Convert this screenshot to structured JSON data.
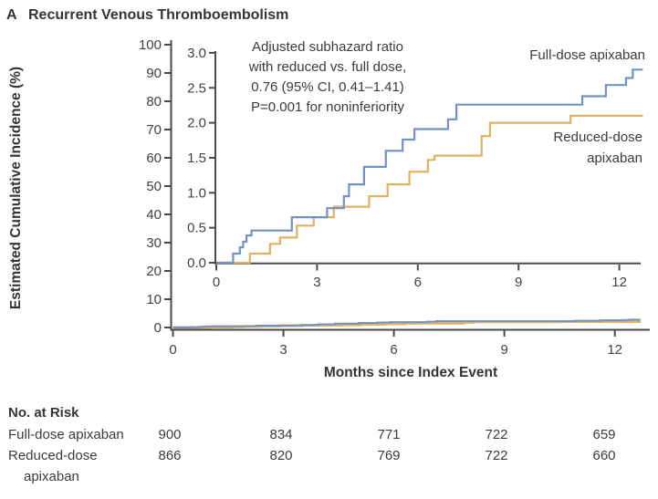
{
  "panel": {
    "label": "A",
    "title": "Recurrent Venous Thromboembolism"
  },
  "colors": {
    "full_dose": "#7292c2",
    "reduced_dose": "#e0b162",
    "axis": "#4a4a4c",
    "tick_text": "#424244",
    "text": "#3b3b3d"
  },
  "chart_data": {
    "type": "line",
    "subtype": "step-cumulative-incidence",
    "title": "Recurrent Venous Thromboembolism",
    "xlabel": "Months since Index Event",
    "ylabel": "Estimated Cumulative Incidence (%)",
    "x_ticks": [
      0,
      3,
      6,
      9,
      12
    ],
    "xlim": [
      0,
      12.95
    ],
    "main_axis": {
      "ylim": [
        0,
        100
      ],
      "y_ticks": [
        0,
        10,
        20,
        30,
        40,
        50,
        60,
        70,
        80,
        90,
        100
      ],
      "grid": false
    },
    "inset_axis": {
      "ylim": [
        0,
        3.0
      ],
      "y_tick_labels": [
        "0.0",
        "0.5",
        "1.0",
        "1.5",
        "2.0",
        "2.5",
        "3.0"
      ],
      "x_ticks": [
        0,
        3,
        6,
        9,
        12
      ],
      "xlim": [
        0,
        12.7
      ]
    },
    "annotation": {
      "lines": [
        "Adjusted subhazard ratio",
        "with reduced vs. full dose,",
        "0.76 (95% CI, 0.41–1.41)",
        "P=0.001 for noninferiority"
      ]
    },
    "series": [
      {
        "name": "Full-dose apixaban",
        "color": "#7292c2",
        "end_month": 12.7,
        "steps": [
          [
            0,
            0
          ],
          [
            0.5,
            0.13
          ],
          [
            0.7,
            0.22
          ],
          [
            0.8,
            0.3
          ],
          [
            0.9,
            0.39
          ],
          [
            1.05,
            0.46
          ],
          [
            2.25,
            0.65
          ],
          [
            3.3,
            0.78
          ],
          [
            3.8,
            0.95
          ],
          [
            3.95,
            1.12
          ],
          [
            4.4,
            1.37
          ],
          [
            5.05,
            1.6
          ],
          [
            5.55,
            1.76
          ],
          [
            5.9,
            1.91
          ],
          [
            6.9,
            2.05
          ],
          [
            7.15,
            2.26
          ],
          [
            10.9,
            2.38
          ],
          [
            11.6,
            2.54
          ],
          [
            12.2,
            2.64
          ],
          [
            12.4,
            2.76
          ]
        ]
      },
      {
        "name": "Reduced-dose apixaban",
        "color": "#e0b162",
        "end_month": 12.7,
        "steps": [
          [
            0,
            0
          ],
          [
            1.0,
            0.13
          ],
          [
            1.6,
            0.27
          ],
          [
            1.9,
            0.36
          ],
          [
            2.4,
            0.53
          ],
          [
            2.9,
            0.65
          ],
          [
            3.5,
            0.8
          ],
          [
            4.55,
            0.95
          ],
          [
            5.1,
            1.12
          ],
          [
            5.75,
            1.3
          ],
          [
            6.3,
            1.47
          ],
          [
            6.5,
            1.53
          ],
          [
            7.9,
            1.81
          ],
          [
            8.15,
            2.0
          ],
          [
            10.55,
            2.1
          ]
        ]
      }
    ]
  },
  "risk_table": {
    "header": "No. at Risk",
    "months": [
      0,
      3,
      6,
      9,
      12
    ],
    "rows": [
      {
        "label": "Full-dose apixaban",
        "label2": "",
        "values": [
          "900",
          "834",
          "771",
          "722",
          "659"
        ]
      },
      {
        "label": "Reduced-dose",
        "label2": "apixaban",
        "values": [
          "866",
          "820",
          "769",
          "722",
          "660"
        ]
      }
    ]
  }
}
